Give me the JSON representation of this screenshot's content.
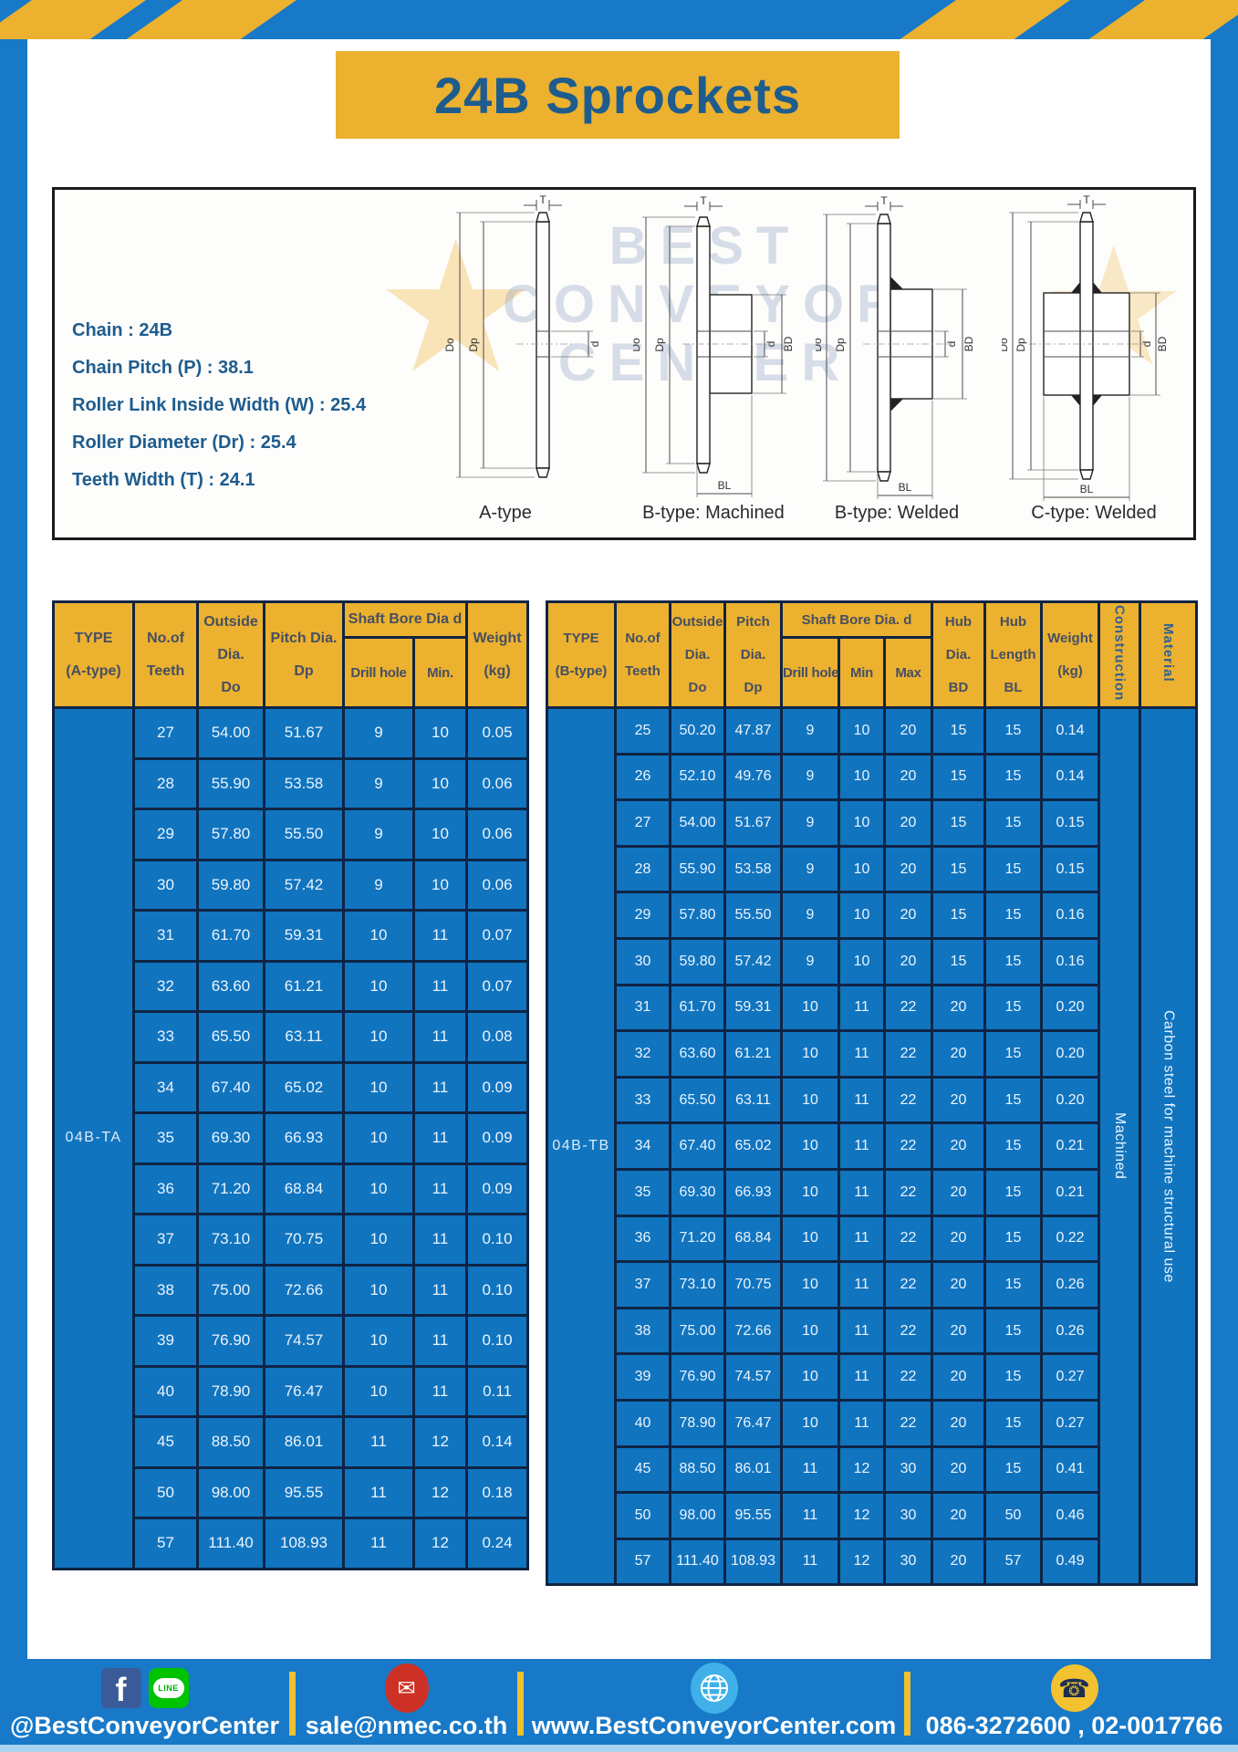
{
  "title": "24B Sprockets",
  "specs": [
    "Chain  : 24B",
    "Chain Pitch (P)  :  38.1",
    "Roller Link Inside Width (W)  :  25.4",
    "Roller Diameter (Dr)  : 25.4",
    "Teeth Width (T)  :  24.1"
  ],
  "watermark": [
    "BEST",
    "CONVEYOR",
    "CENTER"
  ],
  "diagram": {
    "captions": [
      "A-type",
      "B-type: Machined",
      "B-type: Welded",
      "C-type: Welded"
    ],
    "dims": {
      "t": "T",
      "do": "Do",
      "dp": "Dp",
      "d": "d",
      "bd": "BD",
      "bl": "BL"
    }
  },
  "tables": {
    "a": {
      "head": {
        "type": [
          "TYPE",
          "(A-type)"
        ],
        "teeth": [
          "No.of",
          "Teeth"
        ],
        "outside": [
          "Outside",
          "Dia.",
          "Do"
        ],
        "pitch": [
          "Pitch Dia.",
          "Dp"
        ],
        "shaft": "Shaft Bore Dia d",
        "drill": "Drill hole",
        "min": "Min.",
        "weight": [
          "Weight",
          "(kg)"
        ]
      },
      "type_label": "04B-TA",
      "rows": [
        [
          "27",
          "54.00",
          "51.67",
          "9",
          "10",
          "0.05"
        ],
        [
          "28",
          "55.90",
          "53.58",
          "9",
          "10",
          "0.06"
        ],
        [
          "29",
          "57.80",
          "55.50",
          "9",
          "10",
          "0.06"
        ],
        [
          "30",
          "59.80",
          "57.42",
          "9",
          "10",
          "0.06"
        ],
        [
          "31",
          "61.70",
          "59.31",
          "10",
          "11",
          "0.07"
        ],
        [
          "32",
          "63.60",
          "61.21",
          "10",
          "11",
          "0.07"
        ],
        [
          "33",
          "65.50",
          "63.11",
          "10",
          "11",
          "0.08"
        ],
        [
          "34",
          "67.40",
          "65.02",
          "10",
          "11",
          "0.09"
        ],
        [
          "35",
          "69.30",
          "66.93",
          "10",
          "11",
          "0.09"
        ],
        [
          "36",
          "71.20",
          "68.84",
          "10",
          "11",
          "0.09"
        ],
        [
          "37",
          "73.10",
          "70.75",
          "10",
          "11",
          "0.10"
        ],
        [
          "38",
          "75.00",
          "72.66",
          "10",
          "11",
          "0.10"
        ],
        [
          "39",
          "76.90",
          "74.57",
          "10",
          "11",
          "0.10"
        ],
        [
          "40",
          "78.90",
          "76.47",
          "10",
          "11",
          "0.11"
        ],
        [
          "45",
          "88.50",
          "86.01",
          "11",
          "12",
          "0.14"
        ],
        [
          "50",
          "98.00",
          "95.55",
          "11",
          "12",
          "0.18"
        ],
        [
          "57",
          "111.40",
          "108.93",
          "11",
          "12",
          "0.24"
        ]
      ]
    },
    "b": {
      "head": {
        "type": [
          "TYPE",
          "(B-type)"
        ],
        "teeth": [
          "No.of",
          "Teeth"
        ],
        "outside": [
          "Outside",
          "Dia.",
          "Do"
        ],
        "pitch": [
          "Pitch",
          "Dia.",
          "Dp"
        ],
        "shaft": "Shaft Bore Dia.  d",
        "drill": "Drill hole",
        "min": "Min",
        "max": "Max",
        "hub_dia": [
          "Hub",
          "Dia.",
          "BD"
        ],
        "hub_len": [
          "Hub",
          "Length",
          "BL"
        ],
        "weight": [
          "Weight",
          "(kg)"
        ],
        "construction": "Construction",
        "material": "Material"
      },
      "type_label": "04B-TB",
      "construction": "Machined",
      "material": "Carbon steel for machine structural use",
      "rows": [
        [
          "25",
          "50.20",
          "47.87",
          "9",
          "10",
          "20",
          "15",
          "15",
          "0.14"
        ],
        [
          "26",
          "52.10",
          "49.76",
          "9",
          "10",
          "20",
          "15",
          "15",
          "0.14"
        ],
        [
          "27",
          "54.00",
          "51.67",
          "9",
          "10",
          "20",
          "15",
          "15",
          "0.15"
        ],
        [
          "28",
          "55.90",
          "53.58",
          "9",
          "10",
          "20",
          "15",
          "15",
          "0.15"
        ],
        [
          "29",
          "57.80",
          "55.50",
          "9",
          "10",
          "20",
          "15",
          "15",
          "0.16"
        ],
        [
          "30",
          "59.80",
          "57.42",
          "9",
          "10",
          "20",
          "15",
          "15",
          "0.16"
        ],
        [
          "31",
          "61.70",
          "59.31",
          "10",
          "11",
          "22",
          "20",
          "15",
          "0.20"
        ],
        [
          "32",
          "63.60",
          "61.21",
          "10",
          "11",
          "22",
          "20",
          "15",
          "0.20"
        ],
        [
          "33",
          "65.50",
          "63.11",
          "10",
          "11",
          "22",
          "20",
          "15",
          "0.20"
        ],
        [
          "34",
          "67.40",
          "65.02",
          "10",
          "11",
          "22",
          "20",
          "15",
          "0.21"
        ],
        [
          "35",
          "69.30",
          "66.93",
          "10",
          "11",
          "22",
          "20",
          "15",
          "0.21"
        ],
        [
          "36",
          "71.20",
          "68.84",
          "10",
          "11",
          "22",
          "20",
          "15",
          "0.22"
        ],
        [
          "37",
          "73.10",
          "70.75",
          "10",
          "11",
          "22",
          "20",
          "15",
          "0.26"
        ],
        [
          "38",
          "75.00",
          "72.66",
          "10",
          "11",
          "22",
          "20",
          "15",
          "0.26"
        ],
        [
          "39",
          "76.90",
          "74.57",
          "10",
          "11",
          "22",
          "20",
          "15",
          "0.27"
        ],
        [
          "40",
          "78.90",
          "76.47",
          "10",
          "11",
          "22",
          "20",
          "15",
          "0.27"
        ],
        [
          "45",
          "88.50",
          "86.01",
          "11",
          "12",
          "30",
          "20",
          "15",
          "0.41"
        ],
        [
          "50",
          "98.00",
          "95.55",
          "11",
          "12",
          "30",
          "20",
          "50",
          "0.46"
        ],
        [
          "57",
          "111.40",
          "108.93",
          "11",
          "12",
          "30",
          "20",
          "57",
          "0.49"
        ]
      ]
    }
  },
  "footer": {
    "social": "@BestConveyorCenter",
    "facebook_letter": "f",
    "line_label": "LINE",
    "email": "sale@nmec.co.th",
    "website": "www.BestConveyorCenter.com",
    "phone": "086-3272600 , 02-0017766"
  },
  "colors": {
    "frame_blue": "#1779c8",
    "cell_blue": "#1174bf",
    "header_yellow": "#ecb12f",
    "border_navy": "#0f2444",
    "title_blue": "#1e5c8e",
    "facebook_blue": "#3b5a9a",
    "line_green": "#00c300",
    "mail_red": "#cd3126",
    "globe_blue": "#3fb0e8",
    "phone_yellow": "#f3c231"
  }
}
